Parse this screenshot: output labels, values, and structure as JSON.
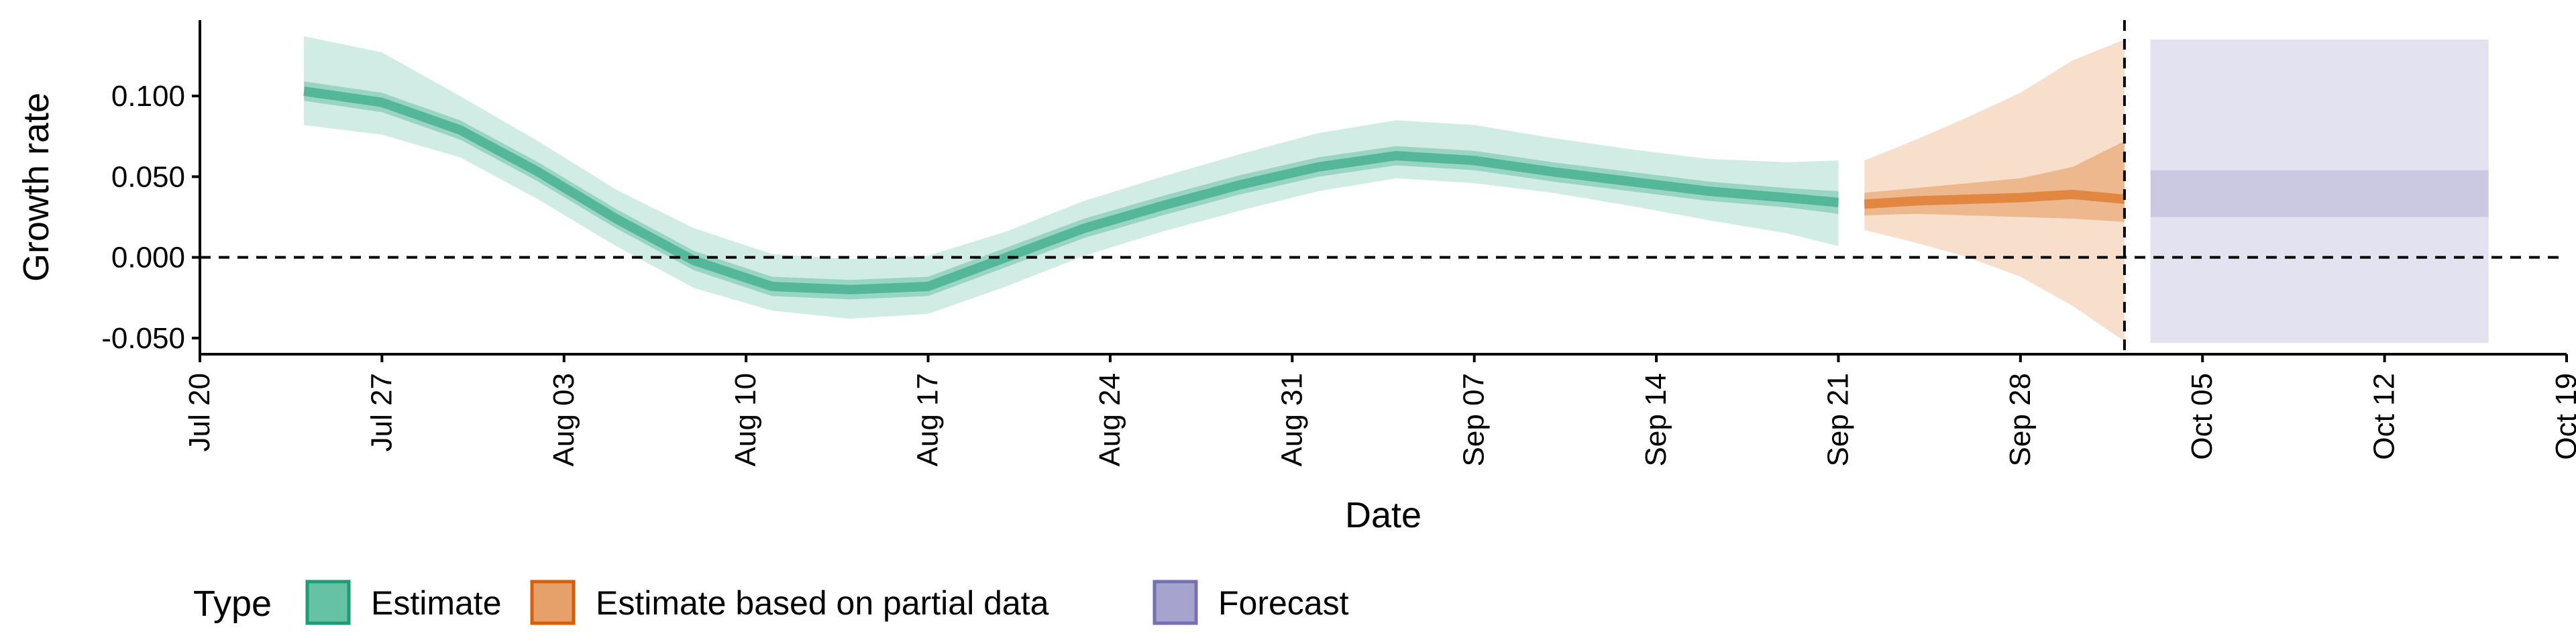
{
  "chart_data": {
    "type": "area",
    "xlabel": "Date",
    "ylabel": "Growth rate",
    "x_ticks": [
      "Jul 20",
      "Jul 27",
      "Aug 03",
      "Aug 10",
      "Aug 17",
      "Aug 24",
      "Aug 31",
      "Sep 07",
      "Sep 14",
      "Sep 21",
      "Sep 28",
      "Oct 05",
      "Oct 12",
      "Oct 19"
    ],
    "x_tick_dates": [
      "2020-07-20",
      "2020-07-27",
      "2020-08-03",
      "2020-08-10",
      "2020-08-17",
      "2020-08-24",
      "2020-08-31",
      "2020-09-07",
      "2020-09-14",
      "2020-09-21",
      "2020-09-28",
      "2020-10-05",
      "2020-10-12",
      "2020-10-19"
    ],
    "xlim": [
      "2020-07-20",
      "2020-10-19"
    ],
    "y_ticks": [
      "-0.050",
      "0.000",
      "0.050",
      "0.100"
    ],
    "y_tick_values": [
      -0.05,
      0.0,
      0.05,
      0.1
    ],
    "ylim": [
      -0.06,
      0.147
    ],
    "grid": false,
    "reference_lines": {
      "horizontal_y": 0.0,
      "vertical_x": "2020-10-02",
      "style": "dashed"
    },
    "legend": {
      "title": "Type",
      "placement": "bottom-left",
      "entries": [
        {
          "label": "Estimate",
          "fill": "#66C2A5",
          "stroke": "#1B9E77"
        },
        {
          "label": "Estimate based on partial data",
          "fill": "#E6A06A",
          "stroke": "#D95F02"
        },
        {
          "label": "Forecast",
          "fill": "#A6A3CE",
          "stroke": "#7570B3"
        }
      ]
    },
    "colors": {
      "estimate": "#1B9E77",
      "partial": "#D95F02",
      "forecast": "#7570B3"
    },
    "series": [
      {
        "name": "Estimate",
        "x": [
          "2020-07-24",
          "2020-07-27",
          "2020-07-30",
          "2020-08-02",
          "2020-08-05",
          "2020-08-08",
          "2020-08-11",
          "2020-08-14",
          "2020-08-17",
          "2020-08-20",
          "2020-08-23",
          "2020-08-26",
          "2020-08-29",
          "2020-09-01",
          "2020-09-04",
          "2020-09-07",
          "2020-09-10",
          "2020-09-13",
          "2020-09-16",
          "2020-09-19",
          "2020-09-21"
        ],
        "median": [
          0.103,
          0.096,
          0.079,
          0.053,
          0.024,
          -0.002,
          -0.018,
          -0.02,
          -0.018,
          0.0,
          0.018,
          0.032,
          0.045,
          0.056,
          0.063,
          0.06,
          0.053,
          0.047,
          0.041,
          0.037,
          0.034
        ],
        "lower_50": [
          0.097,
          0.09,
          0.073,
          0.047,
          0.018,
          -0.008,
          -0.024,
          -0.026,
          -0.024,
          -0.006,
          0.012,
          0.026,
          0.039,
          0.05,
          0.057,
          0.054,
          0.047,
          0.041,
          0.035,
          0.031,
          0.027
        ],
        "upper_50": [
          0.109,
          0.102,
          0.085,
          0.059,
          0.03,
          0.004,
          -0.012,
          -0.014,
          -0.012,
          0.006,
          0.024,
          0.038,
          0.051,
          0.062,
          0.069,
          0.066,
          0.059,
          0.053,
          0.047,
          0.043,
          0.041
        ],
        "lower_90": [
          0.082,
          0.076,
          0.062,
          0.036,
          0.007,
          -0.019,
          -0.033,
          -0.038,
          -0.035,
          -0.018,
          0.001,
          0.016,
          0.029,
          0.041,
          0.049,
          0.046,
          0.04,
          0.032,
          0.023,
          0.015,
          0.007
        ],
        "upper_90": [
          0.137,
          0.127,
          0.1,
          0.072,
          0.042,
          0.018,
          0.002,
          -0.001,
          0.001,
          0.016,
          0.035,
          0.05,
          0.064,
          0.077,
          0.085,
          0.082,
          0.074,
          0.067,
          0.061,
          0.059,
          0.06
        ]
      },
      {
        "name": "Estimate based on partial data",
        "x": [
          "2020-09-22",
          "2020-09-24",
          "2020-09-26",
          "2020-09-28",
          "2020-09-30",
          "2020-10-02"
        ],
        "median": [
          0.033,
          0.035,
          0.036,
          0.037,
          0.039,
          0.036
        ],
        "lower_50": [
          0.026,
          0.027,
          0.026,
          0.025,
          0.024,
          0.022
        ],
        "upper_50": [
          0.04,
          0.043,
          0.046,
          0.049,
          0.056,
          0.072
        ],
        "lower_90": [
          0.017,
          0.009,
          0.0,
          -0.012,
          -0.03,
          -0.052
        ],
        "upper_90": [
          0.06,
          0.073,
          0.087,
          0.102,
          0.122,
          0.135
        ]
      },
      {
        "name": "Forecast",
        "x": [
          "2020-10-03",
          "2020-10-16"
        ],
        "median": [
          0.04,
          0.04
        ],
        "lower_50": [
          0.025,
          0.025
        ],
        "upper_50": [
          0.054,
          0.054
        ],
        "lower_90": [
          -0.053,
          -0.053
        ],
        "upper_90": [
          0.135,
          0.135
        ]
      }
    ]
  }
}
